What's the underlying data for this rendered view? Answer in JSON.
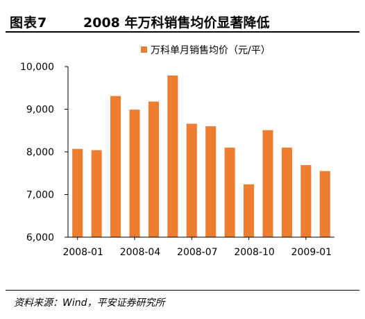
{
  "header": {
    "figure_label": "图表7",
    "title": "2008 年万科销售均价显著降低"
  },
  "footer": {
    "source": "资料来源：Wind，平安证券研究所"
  },
  "colors": {
    "bar": "#ED7D31",
    "axis": "#000000",
    "rule": "#000000"
  },
  "chart_data": {
    "type": "bar",
    "title": "",
    "xlabel": "",
    "ylabel": "",
    "ylim": [
      6000,
      10000
    ],
    "yticks": [
      6000,
      7000,
      8000,
      9000,
      10000
    ],
    "ytick_labels": [
      "6,000",
      "7,000",
      "8,000",
      "9,000",
      "10,000"
    ],
    "grid": false,
    "legend_position": "top-center",
    "categories": [
      "2008-01",
      "2008-02",
      "2008-03",
      "2008-04",
      "2008-05",
      "2008-06",
      "2008-07",
      "2008-08",
      "2008-09",
      "2008-10",
      "2008-11",
      "2008-12",
      "2009-01",
      "2009-02"
    ],
    "xtick_labels": [
      "2008-01",
      "2008-04",
      "2008-07",
      "2008-10",
      "2009-01"
    ],
    "xtick_index": [
      0,
      3,
      6,
      9,
      12
    ],
    "series": [
      {
        "name": "万科单月销售均价（元/平）",
        "values": [
          8070,
          8040,
          9310,
          8990,
          9180,
          9790,
          8660,
          8600,
          8100,
          7240,
          8510,
          8100,
          7690,
          7550
        ]
      }
    ]
  }
}
